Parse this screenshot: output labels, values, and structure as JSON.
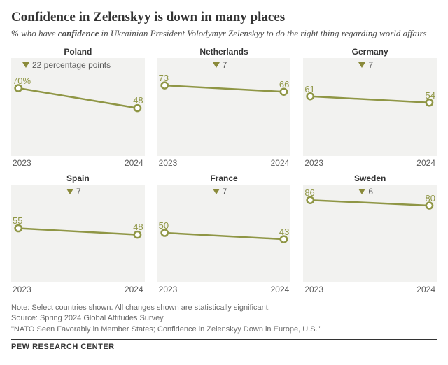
{
  "title": "Confidence in Zelenskyy is down in many places",
  "subtitle_pre": "% who have ",
  "subtitle_word": "confidence",
  "subtitle_post": " in Ukrainian President Volodymyr Zelenskyy to do the right thing regarding world affairs",
  "style": {
    "panel_bg": "#f2f2f0",
    "line_color": "#8f9645",
    "line_width": 2.5,
    "marker_radius": 4.5,
    "marker_fill": "#ffffff",
    "ymin": 0,
    "ymax": 100
  },
  "x_labels": {
    "start": "2023",
    "end": "2024"
  },
  "panels": [
    {
      "country": "Poland",
      "drop": "22 percentage points",
      "v2023": 70,
      "v2024": 48,
      "start_suffix": "%"
    },
    {
      "country": "Netherlands",
      "drop": "7",
      "v2023": 73,
      "v2024": 66,
      "start_suffix": ""
    },
    {
      "country": "Germany",
      "drop": "7",
      "v2023": 61,
      "v2024": 54,
      "start_suffix": ""
    },
    {
      "country": "Spain",
      "drop": "7",
      "v2023": 55,
      "v2024": 48,
      "start_suffix": ""
    },
    {
      "country": "France",
      "drop": "7",
      "v2023": 50,
      "v2024": 43,
      "start_suffix": ""
    },
    {
      "country": "Sweden",
      "drop": "6",
      "v2023": 86,
      "v2024": 80,
      "start_suffix": ""
    }
  ],
  "notes": {
    "l1": "Note: Select countries shown. All changes shown are statistically significant.",
    "l2": "Source: Spring 2024 Global Attitudes Survey.",
    "l3": "\"NATO Seen Favorably in Member States; Confidence in Zelenskyy Down in Europe, U.S.\""
  },
  "brand": "PEW RESEARCH CENTER"
}
